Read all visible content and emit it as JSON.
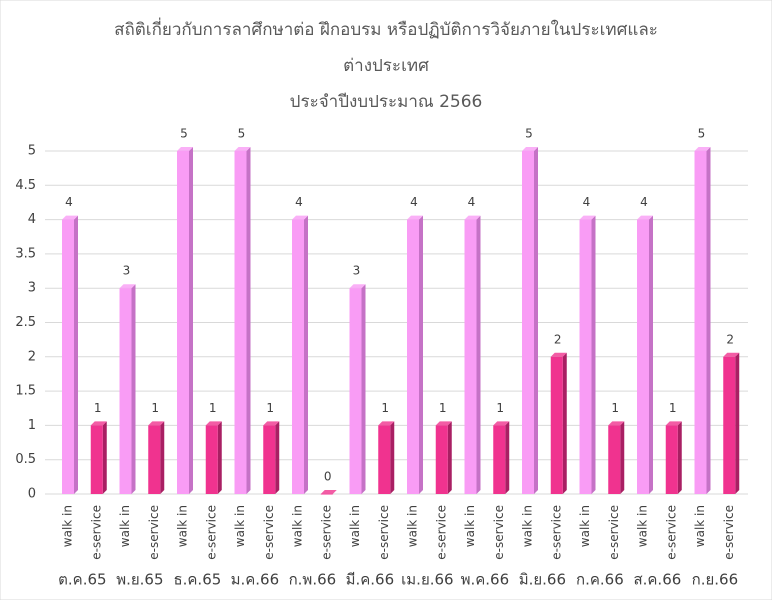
{
  "chart_data": {
    "type": "bar3d",
    "title": [
      "สถิติเกี่ยวกับการลาศึกษาต่อ ฝึกอบรม หรือปฏิบัติการวิจัยภายในประเทศและ",
      "ต่างประเทศ",
      "ประจำปีงบประมาณ 2566"
    ],
    "categories": [
      "ต.ค.65",
      "พ.ย.65",
      "ธ.ค.65",
      "ม.ค.66",
      "ก.พ.66",
      "มี.ค.66",
      "เม.ย.66",
      "พ.ค.66",
      "มิ.ย.66",
      "ก.ค.66",
      "ส.ค.66",
      "ก.ย.66"
    ],
    "series": [
      {
        "name": "walk in",
        "color": "#f99cf5",
        "side_color": "#c572c6",
        "values": [
          4,
          3,
          5,
          5,
          4,
          3,
          4,
          4,
          5,
          4,
          4,
          5
        ]
      },
      {
        "name": "e-service",
        "color": "#f0338f",
        "side_color": "#a91f63",
        "values": [
          1,
          1,
          1,
          1,
          0,
          1,
          1,
          1,
          2,
          1,
          1,
          2
        ]
      }
    ],
    "ylim": [
      0,
      5
    ],
    "yticks": [
      0,
      0.5,
      1,
      1.5,
      2,
      2.5,
      3,
      3.5,
      4,
      4.5,
      5
    ],
    "grid": true
  }
}
